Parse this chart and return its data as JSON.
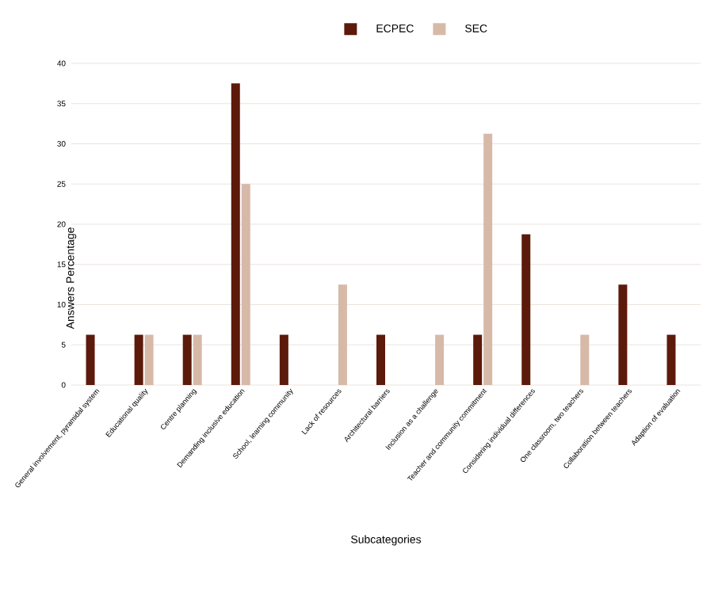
{
  "chart_data": {
    "type": "bar",
    "xlabel": "Subcategories",
    "ylabel": "Answers Percentage",
    "categories": [
      "General involvement, pyramidal system",
      "Educational quality",
      "Centre planning",
      "Demanding inclusive education",
      "School, learning community",
      "Lack of resources",
      "Architectural barriers",
      "Inclusion as a challenge",
      "Teacher and community commitment",
      "Considering individual differences",
      "One classroom, two teachers",
      "Collaboration between teachers",
      "Adaption of evaluation"
    ],
    "series": [
      {
        "name": "ECPEC",
        "color": "#5c1a0b",
        "values": [
          6.25,
          6.25,
          6.25,
          37.5,
          6.25,
          null,
          6.25,
          null,
          6.25,
          18.75,
          null,
          12.5,
          6.25
        ]
      },
      {
        "name": "SEC",
        "color": "#d7b9a8",
        "values": [
          null,
          6.25,
          6.25,
          25,
          null,
          12.5,
          null,
          6.25,
          31.25,
          null,
          6.25,
          null,
          null
        ]
      }
    ],
    "ylim": [
      0,
      40
    ],
    "yticks": [
      0,
      5,
      10,
      15,
      20,
      25,
      30,
      35,
      40
    ],
    "grid": "y",
    "legend": "top"
  }
}
